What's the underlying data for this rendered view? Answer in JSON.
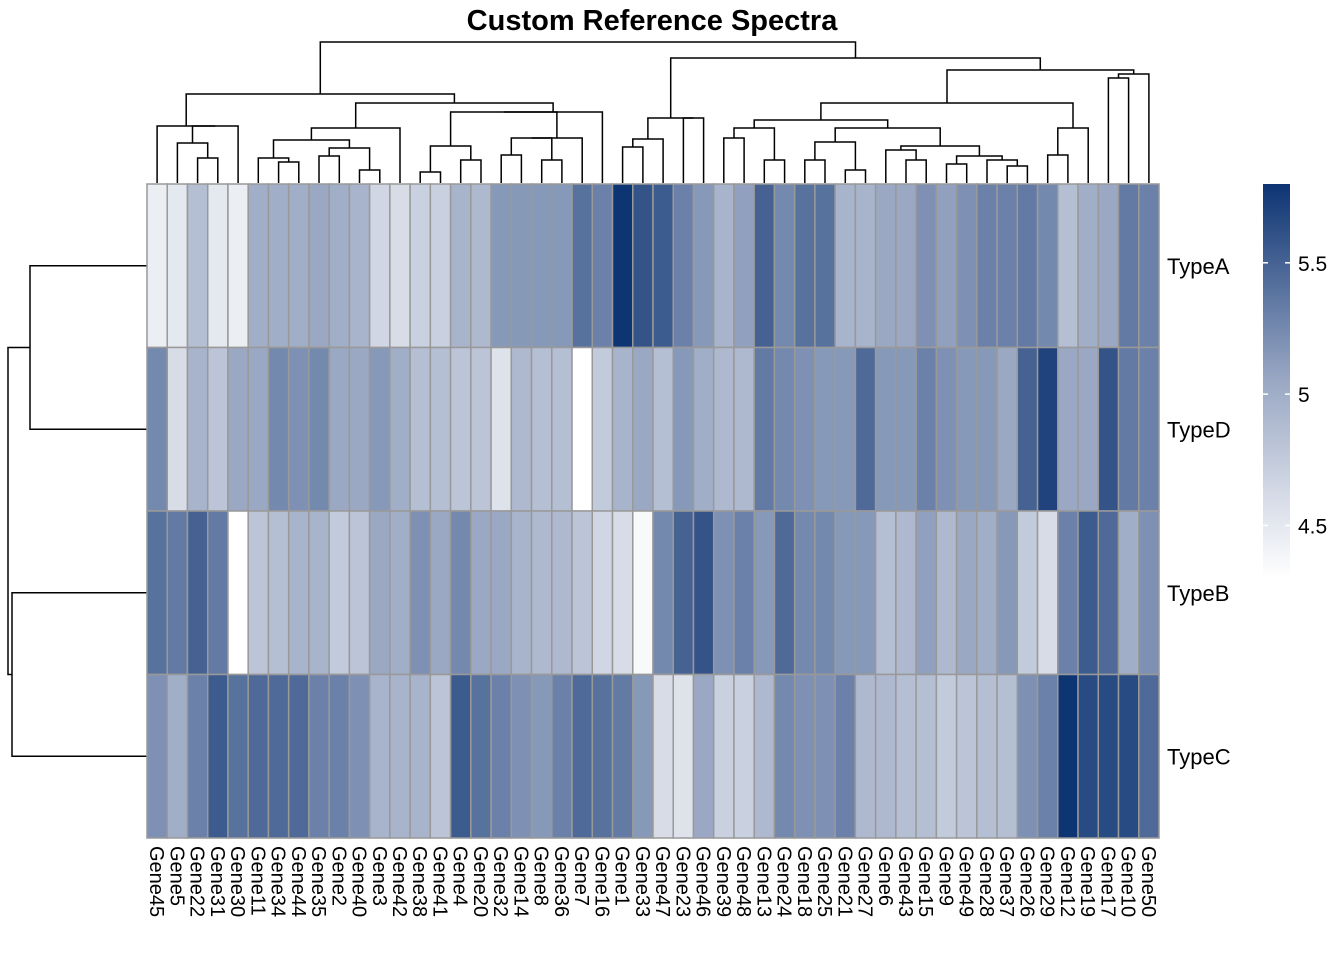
{
  "chart_data": {
    "type": "heatmap",
    "title": "Custom Reference Spectra",
    "columns": [
      "Gene45",
      "Gene5",
      "Gene22",
      "Gene31",
      "Gene30",
      "Gene11",
      "Gene34",
      "Gene44",
      "Gene35",
      "Gene2",
      "Gene40",
      "Gene3",
      "Gene42",
      "Gene38",
      "Gene41",
      "Gene4",
      "Gene20",
      "Gene32",
      "Gene14",
      "Gene8",
      "Gene36",
      "Gene7",
      "Gene16",
      "Gene1",
      "Gene33",
      "Gene47",
      "Gene23",
      "Gene46",
      "Gene39",
      "Gene48",
      "Gene13",
      "Gene24",
      "Gene18",
      "Gene25",
      "Gene21",
      "Gene27",
      "Gene6",
      "Gene43",
      "Gene15",
      "Gene9",
      "Gene49",
      "Gene28",
      "Gene37",
      "Gene26",
      "Gene29",
      "Gene12",
      "Gene19",
      "Gene17",
      "Gene10",
      "Gene50"
    ],
    "rows": [
      "TypeA",
      "TypeD",
      "TypeB",
      "TypeC"
    ],
    "values": [
      [
        4.45,
        4.5,
        4.85,
        4.5,
        4.45,
        5.0,
        5.0,
        5.0,
        5.05,
        5.0,
        4.95,
        4.65,
        4.6,
        4.7,
        4.7,
        4.95,
        4.9,
        5.15,
        5.15,
        5.15,
        5.15,
        5.4,
        5.3,
        5.85,
        5.6,
        5.55,
        5.3,
        5.15,
        4.95,
        5.1,
        5.5,
        5.25,
        5.4,
        5.4,
        4.95,
        4.95,
        5.05,
        5.05,
        5.2,
        5.1,
        5.2,
        5.3,
        5.3,
        5.35,
        5.25,
        4.85,
        5.0,
        5.05,
        5.35,
        5.3
      ],
      [
        5.25,
        4.6,
        4.95,
        4.8,
        5.05,
        5.05,
        5.25,
        5.2,
        5.25,
        5.05,
        5.05,
        5.15,
        5.0,
        4.85,
        4.85,
        4.8,
        4.8,
        4.55,
        4.9,
        4.85,
        4.85,
        4.2,
        4.75,
        4.95,
        5.05,
        4.85,
        5.15,
        5.0,
        4.9,
        4.9,
        5.35,
        5.25,
        5.2,
        5.15,
        5.15,
        5.45,
        5.15,
        5.15,
        5.3,
        5.2,
        5.15,
        5.15,
        5.05,
        5.5,
        5.7,
        5.05,
        5.05,
        5.6,
        5.35,
        5.3
      ],
      [
        5.4,
        5.35,
        5.5,
        5.35,
        4.3,
        4.8,
        4.85,
        4.95,
        4.95,
        4.75,
        4.8,
        5.05,
        5.0,
        5.2,
        5.05,
        5.25,
        5.05,
        5.05,
        4.95,
        4.9,
        4.9,
        4.8,
        4.65,
        4.6,
        4.35,
        5.25,
        5.5,
        5.6,
        5.2,
        5.3,
        5.15,
        5.45,
        5.25,
        5.25,
        5.15,
        5.15,
        4.85,
        4.9,
        5.1,
        4.9,
        5.05,
        5.0,
        5.15,
        4.75,
        4.6,
        5.3,
        5.55,
        5.45,
        5.0,
        5.2
      ],
      [
        5.2,
        5.0,
        5.3,
        5.55,
        5.4,
        5.45,
        5.45,
        5.45,
        5.3,
        5.3,
        5.2,
        4.95,
        4.95,
        4.95,
        4.8,
        5.55,
        5.4,
        5.3,
        5.2,
        5.15,
        5.3,
        5.45,
        5.4,
        5.35,
        5.15,
        4.6,
        4.55,
        5.05,
        4.7,
        4.7,
        4.9,
        5.25,
        5.2,
        5.2,
        5.3,
        4.9,
        4.9,
        4.85,
        4.85,
        4.75,
        4.8,
        4.85,
        4.85,
        5.2,
        5.3,
        5.85,
        5.65,
        5.65,
        5.65,
        5.45
      ]
    ],
    "legend": {
      "ticks": [
        4.5,
        5,
        5.5
      ],
      "tick_labels": [
        "4.5",
        "5",
        "5.5"
      ],
      "min": 4.3,
      "max": 5.8,
      "colors": [
        "#ffffff",
        "#9aa8c4",
        "#0d3473"
      ]
    },
    "row_dendrogram": true,
    "col_dendrogram": true,
    "grid_color": "#999999"
  }
}
